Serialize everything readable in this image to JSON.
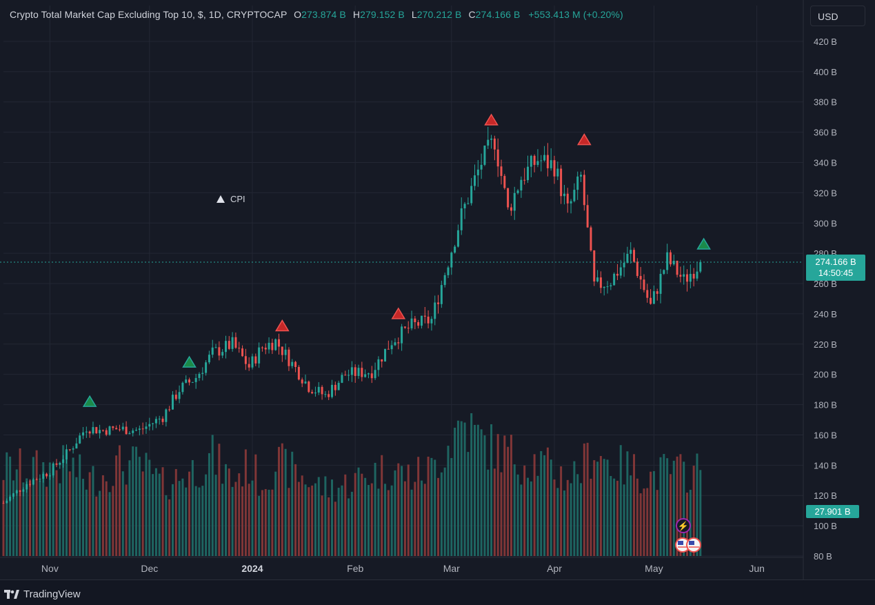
{
  "header": {
    "symbol": "Crypto Total Market Cap Excluding Top 10, $, 1D, CRYPTOCAP",
    "o_label": "O",
    "o_value": "273.874 B",
    "h_label": "H",
    "h_value": "279.152 B",
    "l_label": "L",
    "l_value": "270.212 B",
    "c_label": "C",
    "c_value": "274.166 B",
    "change": "+553.413 M (+0.20%)"
  },
  "currency_button": "USD",
  "price_tag": {
    "value": "274.166 B",
    "countdown": "14:50:45"
  },
  "volume_tag": "27.901 B",
  "cpi_label": "CPI",
  "brand": "TradingView",
  "colors": {
    "up": "#26a69a",
    "down": "#ef5350",
    "bg": "#161a25",
    "grid": "#232734",
    "text": "#b2b5be"
  },
  "chart_data": {
    "type": "candlestick",
    "title": "Crypto Total Market Cap Excluding Top 10, $, 1D, CRYPTOCAP",
    "ylim": [
      80,
      430
    ],
    "y_ticks": [
      "420 B",
      "400 B",
      "380 B",
      "360 B",
      "340 B",
      "320 B",
      "300 B",
      "280 B",
      "260 B",
      "240 B",
      "220 B",
      "200 B",
      "180 B",
      "160 B",
      "140 B",
      "120 B",
      "100 B",
      "80 B"
    ],
    "x_ticks": [
      "Nov",
      "Dec",
      "2024",
      "Feb",
      "Mar",
      "Apr",
      "May",
      "Jun"
    ],
    "x_range": [
      "2023-10-18",
      "2024-06-15"
    ],
    "last_price": 274.166,
    "anchors": [
      [
        "2023-10-18",
        115,
        110
      ],
      [
        "2023-10-25",
        128,
        110
      ],
      [
        "2023-11-01",
        136,
        110
      ],
      [
        "2023-11-07",
        150,
        115
      ],
      [
        "2023-11-12",
        165,
        95
      ],
      [
        "2023-11-16",
        163,
        100
      ],
      [
        "2023-11-22",
        164,
        115
      ],
      [
        "2023-11-28",
        163,
        115
      ],
      [
        "2023-12-05",
        172,
        90
      ],
      [
        "2023-12-10",
        190,
        100
      ],
      [
        "2023-12-15",
        198,
        110
      ],
      [
        "2023-12-20",
        214,
        125
      ],
      [
        "2023-12-26",
        220,
        95
      ],
      [
        "2023-12-31",
        205,
        115
      ],
      [
        "2024-01-04",
        218,
        92
      ],
      [
        "2024-01-08",
        222,
        118
      ],
      [
        "2024-01-12",
        210,
        110
      ],
      [
        "2024-01-18",
        192,
        95
      ],
      [
        "2024-01-23",
        186,
        85
      ],
      [
        "2024-01-29",
        200,
        90
      ],
      [
        "2024-02-06",
        202,
        105
      ],
      [
        "2024-02-12",
        222,
        110
      ],
      [
        "2024-02-18",
        232,
        100
      ],
      [
        "2024-02-24",
        236,
        110
      ],
      [
        "2024-02-29",
        275,
        140
      ],
      [
        "2024-03-04",
        305,
        170
      ],
      [
        "2024-03-10",
        340,
        145
      ],
      [
        "2024-03-14",
        355,
        135
      ],
      [
        "2024-03-18",
        308,
        130
      ],
      [
        "2024-03-22",
        330,
        120
      ],
      [
        "2024-03-27",
        342,
        120
      ],
      [
        "2024-04-01",
        338,
        105
      ],
      [
        "2024-04-05",
        308,
        100
      ],
      [
        "2024-04-09",
        330,
        110
      ],
      [
        "2024-04-13",
        258,
        135
      ],
      [
        "2024-04-18",
        262,
        115
      ],
      [
        "2024-04-24",
        280,
        110
      ],
      [
        "2024-04-30",
        245,
        100
      ],
      [
        "2024-05-05",
        276,
        108
      ],
      [
        "2024-05-10",
        262,
        105
      ],
      [
        "2024-05-15",
        274.166,
        108
      ]
    ],
    "markers": [
      {
        "date": "2023-11-13",
        "price": 182,
        "kind": "up"
      },
      {
        "date": "2023-12-13",
        "price": 208,
        "kind": "up"
      },
      {
        "date": "2024-01-10",
        "price": 232,
        "kind": "down"
      },
      {
        "date": "2024-02-14",
        "price": 240,
        "kind": "down"
      },
      {
        "date": "2024-03-13",
        "price": 368,
        "kind": "down"
      },
      {
        "date": "2024-04-10",
        "price": 355,
        "kind": "down"
      },
      {
        "date": "2024-05-16",
        "price": 286,
        "kind": "up"
      }
    ]
  }
}
